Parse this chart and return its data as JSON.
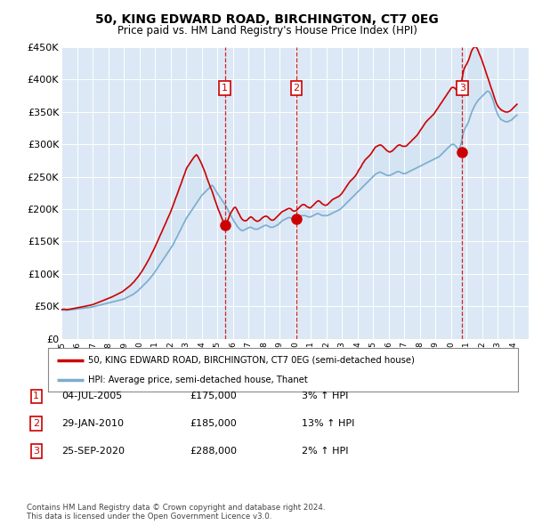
{
  "title": "50, KING EDWARD ROAD, BIRCHINGTON, CT7 0EG",
  "subtitle": "Price paid vs. HM Land Registry's House Price Index (HPI)",
  "legend_line1": "50, KING EDWARD ROAD, BIRCHINGTON, CT7 0EG (semi-detached house)",
  "legend_line2": "HPI: Average price, semi-detached house, Thanet",
  "footer": "Contains HM Land Registry data © Crown copyright and database right 2024.\nThis data is licensed under the Open Government Licence v3.0.",
  "ylim": [
    0,
    450000
  ],
  "yticks": [
    0,
    50000,
    100000,
    150000,
    200000,
    250000,
    300000,
    350000,
    400000,
    450000
  ],
  "ytick_labels": [
    "£0",
    "£50K",
    "£100K",
    "£150K",
    "£200K",
    "£250K",
    "£300K",
    "£350K",
    "£400K",
    "£450K"
  ],
  "xlim_start": 1995.0,
  "xlim_end": 2025.0,
  "plot_bg_color": "#dce8f5",
  "sales": [
    {
      "year": 2005.5,
      "price": 175000,
      "label": "1",
      "date": "04-JUL-2005",
      "pct": "3%",
      "direction": "↑"
    },
    {
      "year": 2010.08,
      "price": 185000,
      "label": "2",
      "date": "29-JAN-2010",
      "pct": "13%",
      "direction": "↑"
    },
    {
      "year": 2020.73,
      "price": 288000,
      "label": "3",
      "date": "25-SEP-2020",
      "pct": "2%",
      "direction": "↑"
    }
  ],
  "hpi_years": [
    1995.0,
    1995.08,
    1995.17,
    1995.25,
    1995.33,
    1995.42,
    1995.5,
    1995.58,
    1995.67,
    1995.75,
    1995.83,
    1995.92,
    1996.0,
    1996.08,
    1996.17,
    1996.25,
    1996.33,
    1996.42,
    1996.5,
    1996.58,
    1996.67,
    1996.75,
    1996.83,
    1996.92,
    1997.0,
    1997.08,
    1997.17,
    1997.25,
    1997.33,
    1997.42,
    1997.5,
    1997.58,
    1997.67,
    1997.75,
    1997.83,
    1997.92,
    1998.0,
    1998.08,
    1998.17,
    1998.25,
    1998.33,
    1998.42,
    1998.5,
    1998.58,
    1998.67,
    1998.75,
    1998.83,
    1998.92,
    1999.0,
    1999.08,
    1999.17,
    1999.25,
    1999.33,
    1999.42,
    1999.5,
    1999.58,
    1999.67,
    1999.75,
    1999.83,
    1999.92,
    2000.0,
    2000.08,
    2000.17,
    2000.25,
    2000.33,
    2000.42,
    2000.5,
    2000.58,
    2000.67,
    2000.75,
    2000.83,
    2000.92,
    2001.0,
    2001.08,
    2001.17,
    2001.25,
    2001.33,
    2001.42,
    2001.5,
    2001.58,
    2001.67,
    2001.75,
    2001.83,
    2001.92,
    2002.0,
    2002.08,
    2002.17,
    2002.25,
    2002.33,
    2002.42,
    2002.5,
    2002.58,
    2002.67,
    2002.75,
    2002.83,
    2002.92,
    2003.0,
    2003.08,
    2003.17,
    2003.25,
    2003.33,
    2003.42,
    2003.5,
    2003.58,
    2003.67,
    2003.75,
    2003.83,
    2003.92,
    2004.0,
    2004.08,
    2004.17,
    2004.25,
    2004.33,
    2004.42,
    2004.5,
    2004.58,
    2004.67,
    2004.75,
    2004.83,
    2004.92,
    2005.0,
    2005.08,
    2005.17,
    2005.25,
    2005.33,
    2005.42,
    2005.5,
    2005.58,
    2005.67,
    2005.75,
    2005.83,
    2005.92,
    2006.0,
    2006.08,
    2006.17,
    2006.25,
    2006.33,
    2006.42,
    2006.5,
    2006.58,
    2006.67,
    2006.75,
    2006.83,
    2006.92,
    2007.0,
    2007.08,
    2007.17,
    2007.25,
    2007.33,
    2007.42,
    2007.5,
    2007.58,
    2007.67,
    2007.75,
    2007.83,
    2007.92,
    2008.0,
    2008.08,
    2008.17,
    2008.25,
    2008.33,
    2008.42,
    2008.5,
    2008.58,
    2008.67,
    2008.75,
    2008.83,
    2008.92,
    2009.0,
    2009.08,
    2009.17,
    2009.25,
    2009.33,
    2009.42,
    2009.5,
    2009.58,
    2009.67,
    2009.75,
    2009.83,
    2009.92,
    2010.0,
    2010.08,
    2010.17,
    2010.25,
    2010.33,
    2010.42,
    2010.5,
    2010.58,
    2010.67,
    2010.75,
    2010.83,
    2010.92,
    2011.0,
    2011.08,
    2011.17,
    2011.25,
    2011.33,
    2011.42,
    2011.5,
    2011.58,
    2011.67,
    2011.75,
    2011.83,
    2011.92,
    2012.0,
    2012.08,
    2012.17,
    2012.25,
    2012.33,
    2012.42,
    2012.5,
    2012.58,
    2012.67,
    2012.75,
    2012.83,
    2012.92,
    2013.0,
    2013.08,
    2013.17,
    2013.25,
    2013.33,
    2013.42,
    2013.5,
    2013.58,
    2013.67,
    2013.75,
    2013.83,
    2013.92,
    2014.0,
    2014.08,
    2014.17,
    2014.25,
    2014.33,
    2014.42,
    2014.5,
    2014.58,
    2014.67,
    2014.75,
    2014.83,
    2014.92,
    2015.0,
    2015.08,
    2015.17,
    2015.25,
    2015.33,
    2015.42,
    2015.5,
    2015.58,
    2015.67,
    2015.75,
    2015.83,
    2015.92,
    2016.0,
    2016.08,
    2016.17,
    2016.25,
    2016.33,
    2016.42,
    2016.5,
    2016.58,
    2016.67,
    2016.75,
    2016.83,
    2016.92,
    2017.0,
    2017.08,
    2017.17,
    2017.25,
    2017.33,
    2017.42,
    2017.5,
    2017.58,
    2017.67,
    2017.75,
    2017.83,
    2017.92,
    2018.0,
    2018.08,
    2018.17,
    2018.25,
    2018.33,
    2018.42,
    2018.5,
    2018.58,
    2018.67,
    2018.75,
    2018.83,
    2018.92,
    2019.0,
    2019.08,
    2019.17,
    2019.25,
    2019.33,
    2019.42,
    2019.5,
    2019.58,
    2019.67,
    2019.75,
    2019.83,
    2019.92,
    2020.0,
    2020.08,
    2020.17,
    2020.25,
    2020.33,
    2020.42,
    2020.5,
    2020.58,
    2020.67,
    2020.75,
    2020.83,
    2020.92,
    2021.0,
    2021.08,
    2021.17,
    2021.25,
    2021.33,
    2021.42,
    2021.5,
    2021.58,
    2021.67,
    2021.75,
    2021.83,
    2021.92,
    2022.0,
    2022.08,
    2022.17,
    2022.25,
    2022.33,
    2022.42,
    2022.5,
    2022.58,
    2022.67,
    2022.75,
    2022.83,
    2022.92,
    2023.0,
    2023.08,
    2023.17,
    2023.25,
    2023.33,
    2023.42,
    2023.5,
    2023.58,
    2023.67,
    2023.75,
    2023.83,
    2023.92,
    2024.0,
    2024.08,
    2024.17,
    2024.25
  ],
  "hpi_values": [
    44000,
    44200,
    44300,
    44100,
    43900,
    44100,
    44300,
    44500,
    44800,
    45000,
    45200,
    45500,
    45800,
    46000,
    46300,
    46500,
    46800,
    47000,
    47300,
    47500,
    47800,
    48000,
    48300,
    48600,
    49000,
    49500,
    50000,
    50500,
    51000,
    51500,
    52000,
    52500,
    53000,
    53500,
    54000,
    54500,
    55000,
    55500,
    56000,
    56500,
    57000,
    57500,
    58000,
    58500,
    59000,
    59500,
    60000,
    60500,
    61000,
    62000,
    63000,
    64000,
    65000,
    66000,
    67000,
    68000,
    69500,
    71000,
    72500,
    74000,
    76000,
    78000,
    80000,
    82000,
    84000,
    86000,
    88000,
    90000,
    92500,
    95000,
    97500,
    100000,
    103000,
    106000,
    109000,
    112000,
    115000,
    118000,
    121000,
    124000,
    127000,
    130000,
    133000,
    136000,
    139000,
    142000,
    145000,
    149000,
    153000,
    157000,
    161000,
    165000,
    169000,
    173000,
    177000,
    181000,
    185000,
    188000,
    191000,
    194000,
    197000,
    200000,
    203000,
    206000,
    209000,
    212000,
    215000,
    218000,
    221000,
    223000,
    225000,
    227000,
    229000,
    231000,
    233000,
    235000,
    237000,
    235000,
    232000,
    228000,
    225000,
    222000,
    219000,
    216000,
    213000,
    210000,
    207000,
    204000,
    200000,
    196000,
    192000,
    188000,
    185000,
    181000,
    178000,
    175000,
    172000,
    170000,
    168000,
    167000,
    167000,
    168000,
    169000,
    170000,
    171000,
    172000,
    172000,
    171000,
    170000,
    169000,
    169000,
    169000,
    170000,
    171000,
    172000,
    173000,
    174000,
    175000,
    175000,
    174000,
    173000,
    172000,
    172000,
    172000,
    173000,
    174000,
    175000,
    176000,
    178000,
    180000,
    182000,
    183000,
    184000,
    185000,
    186000,
    187000,
    187000,
    186000,
    185000,
    185000,
    185000,
    186000,
    187000,
    188000,
    189000,
    190000,
    190000,
    190000,
    190000,
    189000,
    188000,
    188000,
    188000,
    189000,
    190000,
    191000,
    192000,
    193000,
    193000,
    192000,
    191000,
    190000,
    190000,
    190000,
    190000,
    190000,
    191000,
    192000,
    193000,
    194000,
    195000,
    196000,
    197000,
    198000,
    199000,
    200000,
    202000,
    204000,
    206000,
    208000,
    210000,
    212000,
    214000,
    216000,
    218000,
    220000,
    222000,
    224000,
    226000,
    228000,
    230000,
    232000,
    234000,
    236000,
    238000,
    240000,
    242000,
    244000,
    246000,
    248000,
    250000,
    252000,
    254000,
    255000,
    256000,
    257000,
    257000,
    256000,
    255000,
    254000,
    253000,
    252000,
    252000,
    252000,
    253000,
    254000,
    255000,
    256000,
    257000,
    258000,
    258000,
    257000,
    256000,
    255000,
    255000,
    255000,
    256000,
    257000,
    258000,
    259000,
    260000,
    261000,
    262000,
    263000,
    264000,
    265000,
    266000,
    267000,
    268000,
    269000,
    270000,
    271000,
    272000,
    273000,
    274000,
    275000,
    276000,
    277000,
    278000,
    279000,
    280000,
    281000,
    283000,
    285000,
    287000,
    289000,
    291000,
    293000,
    295000,
    297000,
    299000,
    300000,
    300000,
    299000,
    297000,
    294000,
    292000,
    295000,
    302000,
    312000,
    320000,
    325000,
    328000,
    332000,
    337000,
    343000,
    349000,
    354000,
    358000,
    362000,
    365000,
    368000,
    370000,
    372000,
    374000,
    376000,
    378000,
    380000,
    382000,
    382000,
    380000,
    376000,
    371000,
    365000,
    358000,
    352000,
    347000,
    343000,
    340000,
    338000,
    337000,
    336000,
    335000,
    335000,
    335000,
    336000,
    337000,
    338000,
    340000,
    342000,
    344000,
    345000
  ],
  "price_years": [
    1995.0,
    1995.08,
    1995.17,
    1995.25,
    1995.33,
    1995.42,
    1995.5,
    1995.58,
    1995.67,
    1995.75,
    1995.83,
    1995.92,
    1996.0,
    1996.08,
    1996.17,
    1996.25,
    1996.33,
    1996.42,
    1996.5,
    1996.58,
    1996.67,
    1996.75,
    1996.83,
    1996.92,
    1997.0,
    1997.08,
    1997.17,
    1997.25,
    1997.33,
    1997.42,
    1997.5,
    1997.58,
    1997.67,
    1997.75,
    1997.83,
    1997.92,
    1998.0,
    1998.08,
    1998.17,
    1998.25,
    1998.33,
    1998.42,
    1998.5,
    1998.58,
    1998.67,
    1998.75,
    1998.83,
    1998.92,
    1999.0,
    1999.08,
    1999.17,
    1999.25,
    1999.33,
    1999.42,
    1999.5,
    1999.58,
    1999.67,
    1999.75,
    1999.83,
    1999.92,
    2000.0,
    2000.08,
    2000.17,
    2000.25,
    2000.33,
    2000.42,
    2000.5,
    2000.58,
    2000.67,
    2000.75,
    2000.83,
    2000.92,
    2001.0,
    2001.08,
    2001.17,
    2001.25,
    2001.33,
    2001.42,
    2001.5,
    2001.58,
    2001.67,
    2001.75,
    2001.83,
    2001.92,
    2002.0,
    2002.08,
    2002.17,
    2002.25,
    2002.33,
    2002.42,
    2002.5,
    2002.58,
    2002.67,
    2002.75,
    2002.83,
    2002.92,
    2003.0,
    2003.08,
    2003.17,
    2003.25,
    2003.33,
    2003.42,
    2003.5,
    2003.58,
    2003.67,
    2003.75,
    2003.83,
    2003.92,
    2004.0,
    2004.08,
    2004.17,
    2004.25,
    2004.33,
    2004.42,
    2004.5,
    2004.58,
    2004.67,
    2004.75,
    2004.83,
    2004.92,
    2005.0,
    2005.08,
    2005.17,
    2005.25,
    2005.33,
    2005.42,
    2005.5,
    2005.58,
    2005.67,
    2005.75,
    2005.83,
    2005.92,
    2006.0,
    2006.08,
    2006.17,
    2006.25,
    2006.33,
    2006.42,
    2006.5,
    2006.58,
    2006.67,
    2006.75,
    2006.83,
    2006.92,
    2007.0,
    2007.08,
    2007.17,
    2007.25,
    2007.33,
    2007.42,
    2007.5,
    2007.58,
    2007.67,
    2007.75,
    2007.83,
    2007.92,
    2008.0,
    2008.08,
    2008.17,
    2008.25,
    2008.33,
    2008.42,
    2008.5,
    2008.58,
    2008.67,
    2008.75,
    2008.83,
    2008.92,
    2009.0,
    2009.08,
    2009.17,
    2009.25,
    2009.33,
    2009.42,
    2009.5,
    2009.58,
    2009.67,
    2009.75,
    2009.83,
    2009.92,
    2010.0,
    2010.08,
    2010.17,
    2010.25,
    2010.33,
    2010.42,
    2010.5,
    2010.58,
    2010.67,
    2010.75,
    2010.83,
    2010.92,
    2011.0,
    2011.08,
    2011.17,
    2011.25,
    2011.33,
    2011.42,
    2011.5,
    2011.58,
    2011.67,
    2011.75,
    2011.83,
    2011.92,
    2012.0,
    2012.08,
    2012.17,
    2012.25,
    2012.33,
    2012.42,
    2012.5,
    2012.58,
    2012.67,
    2012.75,
    2012.83,
    2012.92,
    2013.0,
    2013.08,
    2013.17,
    2013.25,
    2013.33,
    2013.42,
    2013.5,
    2013.58,
    2013.67,
    2013.75,
    2013.83,
    2013.92,
    2014.0,
    2014.08,
    2014.17,
    2014.25,
    2014.33,
    2014.42,
    2014.5,
    2014.58,
    2014.67,
    2014.75,
    2014.83,
    2014.92,
    2015.0,
    2015.08,
    2015.17,
    2015.25,
    2015.33,
    2015.42,
    2015.5,
    2015.58,
    2015.67,
    2015.75,
    2015.83,
    2015.92,
    2016.0,
    2016.08,
    2016.17,
    2016.25,
    2016.33,
    2016.42,
    2016.5,
    2016.58,
    2016.67,
    2016.75,
    2016.83,
    2016.92,
    2017.0,
    2017.08,
    2017.17,
    2017.25,
    2017.33,
    2017.42,
    2017.5,
    2017.58,
    2017.67,
    2017.75,
    2017.83,
    2017.92,
    2018.0,
    2018.08,
    2018.17,
    2018.25,
    2018.33,
    2018.42,
    2018.5,
    2018.58,
    2018.67,
    2018.75,
    2018.83,
    2018.92,
    2019.0,
    2019.08,
    2019.17,
    2019.25,
    2019.33,
    2019.42,
    2019.5,
    2019.58,
    2019.67,
    2019.75,
    2019.83,
    2019.92,
    2020.0,
    2020.08,
    2020.17,
    2020.25,
    2020.33,
    2020.42,
    2020.5,
    2020.58,
    2020.67,
    2020.75,
    2020.83,
    2020.92,
    2021.0,
    2021.08,
    2021.17,
    2021.25,
    2021.33,
    2021.42,
    2021.5,
    2021.58,
    2021.67,
    2021.75,
    2021.83,
    2021.92,
    2022.0,
    2022.08,
    2022.17,
    2022.25,
    2022.33,
    2022.42,
    2022.5,
    2022.58,
    2022.67,
    2022.75,
    2022.83,
    2022.92,
    2023.0,
    2023.08,
    2023.17,
    2023.25,
    2023.33,
    2023.42,
    2023.5,
    2023.58,
    2023.67,
    2023.75,
    2023.83,
    2023.92,
    2024.0,
    2024.08,
    2024.17,
    2024.25
  ],
  "price_values": [
    45000,
    45200,
    45400,
    45100,
    44800,
    45000,
    45300,
    45600,
    46000,
    46400,
    46800,
    47200,
    47600,
    48000,
    48400,
    48700,
    49000,
    49400,
    49800,
    50200,
    50600,
    51000,
    51500,
    52000,
    52500,
    53200,
    54000,
    54800,
    55600,
    56400,
    57200,
    58000,
    58800,
    59600,
    60400,
    61200,
    62000,
    62800,
    63600,
    64500,
    65500,
    66500,
    67500,
    68500,
    69500,
    70500,
    71500,
    72500,
    74000,
    75500,
    77000,
    78500,
    80000,
    82000,
    84000,
    86000,
    88000,
    90500,
    93000,
    95500,
    98000,
    101000,
    104000,
    107000,
    110500,
    114000,
    117500,
    121000,
    125000,
    129000,
    133000,
    137000,
    141000,
    145500,
    150000,
    154500,
    159000,
    163500,
    168000,
    172500,
    177000,
    181500,
    186000,
    190500,
    195000,
    200000,
    205500,
    211000,
    216500,
    222000,
    227500,
    233000,
    238500,
    244000,
    249500,
    255000,
    261000,
    265000,
    268000,
    271000,
    274000,
    277000,
    280000,
    282000,
    284000,
    282000,
    278000,
    274000,
    270000,
    265000,
    260000,
    255000,
    249000,
    243000,
    238000,
    233000,
    228000,
    222000,
    216000,
    210000,
    205000,
    199000,
    194000,
    189000,
    184000,
    179000,
    175000,
    178000,
    182000,
    187000,
    192000,
    196000,
    199000,
    202000,
    203000,
    200000,
    196000,
    192000,
    188000,
    185000,
    183000,
    182000,
    182000,
    183000,
    185000,
    187000,
    188000,
    187000,
    185000,
    183000,
    182000,
    181000,
    182000,
    183000,
    185000,
    187000,
    188000,
    189000,
    189000,
    188000,
    186000,
    184000,
    183000,
    183000,
    184000,
    186000,
    188000,
    190000,
    192000,
    194000,
    196000,
    197000,
    198000,
    199000,
    200000,
    201000,
    201000,
    200000,
    198000,
    197000,
    197000,
    198000,
    200000,
    202000,
    204000,
    206000,
    207000,
    207000,
    206000,
    204000,
    203000,
    202000,
    202000,
    204000,
    206000,
    208000,
    210000,
    212000,
    213000,
    212000,
    210000,
    208000,
    207000,
    206000,
    206000,
    207000,
    209000,
    211000,
    213000,
    215000,
    216000,
    217000,
    218000,
    219000,
    220000,
    222000,
    224000,
    227000,
    230000,
    233000,
    236000,
    239000,
    242000,
    244000,
    246000,
    248000,
    250000,
    253000,
    256000,
    260000,
    263000,
    266000,
    270000,
    273000,
    276000,
    278000,
    280000,
    282000,
    284000,
    287000,
    290000,
    293000,
    296000,
    297000,
    298000,
    299000,
    299000,
    298000,
    296000,
    294000,
    292000,
    290000,
    289000,
    288000,
    289000,
    290000,
    292000,
    294000,
    296000,
    298000,
    299000,
    299000,
    298000,
    297000,
    297000,
    297000,
    298000,
    300000,
    302000,
    304000,
    306000,
    308000,
    310000,
    312000,
    314000,
    317000,
    320000,
    323000,
    326000,
    329000,
    332000,
    335000,
    337000,
    339000,
    341000,
    343000,
    345000,
    347000,
    350000,
    353000,
    356000,
    359000,
    362000,
    365000,
    368000,
    371000,
    374000,
    377000,
    380000,
    383000,
    386000,
    388000,
    388000,
    387000,
    385000,
    382000,
    380000,
    385000,
    393000,
    405000,
    415000,
    420000,
    423000,
    427000,
    432000,
    438000,
    444000,
    448000,
    450000,
    451000,
    449000,
    445000,
    440000,
    435000,
    430000,
    424000,
    418000,
    412000,
    406000,
    400000,
    394000,
    388000,
    382000,
    376000,
    370000,
    364000,
    360000,
    357000,
    355000,
    353000,
    352000,
    351000,
    350000,
    350000,
    350000,
    351000,
    352000,
    354000,
    356000,
    358000,
    360000,
    362000
  ],
  "red_color": "#cc0000",
  "blue_color": "#7aadcf",
  "fill_color": "#c8dff0",
  "marker_box_color": "#cc0000",
  "dashed_line_color": "#cc0000",
  "grid_color": "#ffffff",
  "border_color": "#aaaaaa"
}
